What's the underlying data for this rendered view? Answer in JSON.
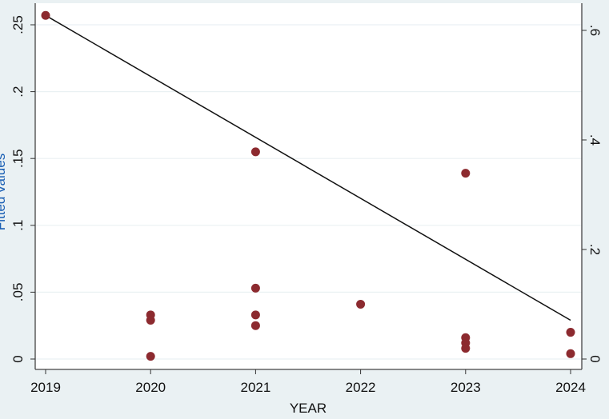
{
  "chart_data": {
    "type": "scatter",
    "xlabel": "YEAR",
    "ylabel": "Fitted values",
    "xlim": [
      2019,
      2024
    ],
    "ylim": [
      0,
      0.27
    ],
    "xticks": [
      "2019",
      "2020",
      "2021",
      "2022",
      "2023",
      "2024"
    ],
    "yticks_left": [
      "0",
      ".05",
      ".1",
      ".15",
      ".2",
      ".25"
    ],
    "yticks_right": [
      "0",
      ".2",
      ".4",
      ".6"
    ],
    "yticks_left_values": [
      0,
      0.05,
      0.1,
      0.15,
      0.2,
      0.25
    ],
    "yticks_right_values": [
      0,
      0.2,
      0.4,
      0.6
    ],
    "y2lim": [
      0,
      0.645
    ],
    "grid": true,
    "points": [
      {
        "x": 2019,
        "y": 0.257
      },
      {
        "x": 2020,
        "y": 0.033
      },
      {
        "x": 2020,
        "y": 0.029
      },
      {
        "x": 2020,
        "y": 0.002
      },
      {
        "x": 2021,
        "y": 0.155
      },
      {
        "x": 2021,
        "y": 0.053
      },
      {
        "x": 2021,
        "y": 0.033
      },
      {
        "x": 2021,
        "y": 0.025
      },
      {
        "x": 2022,
        "y": 0.041
      },
      {
        "x": 2023,
        "y": 0.139
      },
      {
        "x": 2023,
        "y": 0.016
      },
      {
        "x": 2023,
        "y": 0.012
      },
      {
        "x": 2023,
        "y": 0.008
      },
      {
        "x": 2024,
        "y": 0.02
      },
      {
        "x": 2024,
        "y": 0.004
      }
    ],
    "fitted_line": [
      {
        "x": 2019,
        "y": 0.257
      },
      {
        "x": 2024,
        "y": 0.029
      }
    ],
    "colors": {
      "points": "#8c2a2f",
      "line": "#111111",
      "ylabel": "#1a5fb4",
      "background": "#eaf1f3",
      "plot": "#ffffff"
    }
  }
}
